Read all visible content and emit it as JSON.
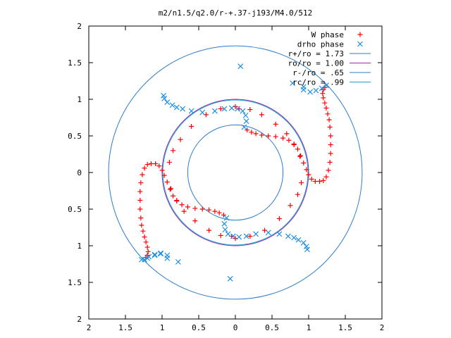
{
  "chart_data": {
    "type": "scatter",
    "title": "m2/n1.5/q2.0/r-+.37-j193/M4.0/512",
    "xlabel": "",
    "ylabel": "",
    "xlim": [
      -2,
      2
    ],
    "ylim": [
      -2,
      2
    ],
    "x_ticks": [
      -2,
      -1.5,
      -1,
      -0.5,
      0,
      0.5,
      1,
      1.5,
      2
    ],
    "y_ticks": [
      -2,
      -1.5,
      -1,
      -0.5,
      0,
      0.5,
      1,
      1.5,
      2
    ],
    "x_tick_labels": [
      "2",
      "1.5",
      "1",
      "0.5",
      "0",
      "0.5",
      "1",
      "1.5",
      "2"
    ],
    "y_tick_labels": [
      "2",
      "1.5",
      "1",
      "0.5",
      "0",
      "0.5",
      "1",
      "1.5",
      "2"
    ],
    "grid": false,
    "legend_position": "top-right",
    "series": [
      {
        "name": "W phase",
        "marker": "plus",
        "color": "#ff0000",
        "note": "two symmetric arms (second arm is the point reflection x,y -> -x,-y of the first)",
        "points": [
          [
            0.16,
            0.58
          ],
          [
            0.22,
            0.55
          ],
          [
            0.28,
            0.53
          ],
          [
            0.36,
            0.51
          ],
          [
            0.45,
            0.5
          ],
          [
            0.55,
            0.49
          ],
          [
            0.65,
            0.47
          ],
          [
            0.73,
            0.44
          ],
          [
            0.8,
            0.39
          ],
          [
            0.85,
            0.32
          ],
          [
            0.89,
            0.23
          ],
          [
            0.93,
            0.13
          ],
          [
            0.97,
            0.04
          ],
          [
            1.0,
            -0.03
          ],
          [
            1.04,
            -0.09
          ],
          [
            1.09,
            -0.12
          ],
          [
            1.15,
            -0.12
          ],
          [
            1.2,
            -0.11
          ],
          [
            1.24,
            -0.06
          ],
          [
            1.27,
            0.03
          ],
          [
            1.29,
            0.14
          ],
          [
            1.3,
            0.26
          ],
          [
            1.3,
            0.38
          ],
          [
            1.3,
            0.5
          ],
          [
            1.29,
            0.62
          ],
          [
            1.28,
            0.72
          ],
          [
            1.26,
            0.8
          ],
          [
            1.24,
            0.88
          ],
          [
            1.22,
            0.95
          ],
          [
            1.2,
            1.02
          ],
          [
            1.19,
            1.08
          ],
          [
            1.2,
            1.13
          ],
          [
            1.22,
            1.16
          ],
          [
            0.0,
            0.9
          ],
          [
            -0.2,
            0.87
          ],
          [
            -0.4,
            0.79
          ],
          [
            -0.6,
            0.63
          ],
          [
            -0.75,
            0.45
          ],
          [
            -0.85,
            0.3
          ],
          [
            -0.9,
            0.14
          ],
          [
            -0.88,
            -0.22
          ],
          [
            -0.8,
            -0.38
          ],
          [
            -0.7,
            -0.53
          ],
          [
            -0.55,
            -0.66
          ],
          [
            -0.36,
            -0.79
          ],
          [
            -0.2,
            -0.86
          ],
          [
            -0.05,
            -0.87
          ]
        ]
      },
      {
        "name": "drho phase",
        "marker": "x",
        "color": "#1f8fe0",
        "note": "two symmetric arms plus scattered outlier points",
        "points": [
          [
            0.12,
            0.62
          ],
          [
            0.15,
            0.7
          ],
          [
            0.14,
            0.78
          ],
          [
            0.1,
            0.84
          ],
          [
            0.03,
            0.87
          ],
          [
            -0.05,
            0.88
          ],
          [
            -0.15,
            0.87
          ],
          [
            -0.28,
            0.84
          ],
          [
            -0.45,
            0.82
          ],
          [
            -0.6,
            0.84
          ],
          [
            -0.72,
            0.87
          ],
          [
            -0.8,
            0.89
          ],
          [
            -0.86,
            0.92
          ],
          [
            -0.93,
            0.96
          ],
          [
            -0.97,
            1.01
          ],
          [
            -0.98,
            1.05
          ],
          [
            0.93,
            1.13
          ],
          [
            1.02,
            1.1
          ],
          [
            1.1,
            1.12
          ],
          [
            1.18,
            1.15
          ],
          [
            1.24,
            1.19
          ],
          [
            -1.28,
            -1.19
          ],
          [
            -1.2,
            -1.17
          ],
          [
            -1.1,
            -1.13
          ],
          [
            -1.02,
            -1.11
          ],
          [
            -0.78,
            -1.22
          ],
          [
            -0.93,
            -1.17
          ],
          [
            0.78,
            1.22
          ],
          [
            0.93,
            1.17
          ],
          [
            0.07,
            1.45
          ],
          [
            -0.07,
            -1.45
          ]
        ]
      },
      {
        "name": "r+/ro = 1.73",
        "type": "circle",
        "radius": 1.73,
        "color": "#2b7cc8"
      },
      {
        "name": "ro/ro = 1.00",
        "type": "circle",
        "radius": 1.0,
        "color": "#9b2fa0"
      },
      {
        "name": "r-/ro = .65",
        "type": "circle",
        "radius": 0.65,
        "color": "#2b7cc8"
      },
      {
        "name": "rc/ro = .99",
        "type": "circle",
        "radius": 0.99,
        "color": "#1aa0d8"
      }
    ]
  }
}
